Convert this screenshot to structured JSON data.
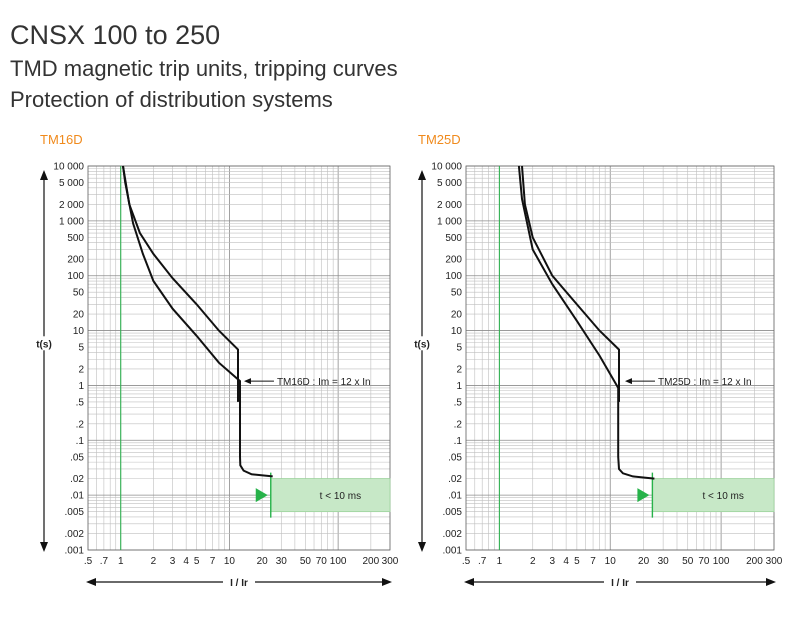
{
  "header": {
    "title": "CNSX 100 to 250",
    "subtitle_1": "TMD magnetic trip units, tripping curves",
    "subtitle_2": "Protection of distribution systems"
  },
  "colors": {
    "title_accent": "#f08a1c",
    "ir_line": "#27b24a",
    "zone_fill": "#c7e8c7",
    "zone_stroke": "#9bd39b",
    "zone_marker": "#27b24a",
    "curve": "#111111"
  },
  "chart_data": [
    {
      "type": "line",
      "title": "TM16D",
      "xlabel": "I / Ir",
      "ylabel": "t(s)",
      "x_scale": "log",
      "y_scale": "log",
      "xlim": [
        0.5,
        300
      ],
      "ylim": [
        0.001,
        10000
      ],
      "x_ticks": [
        {
          "v": 0.5,
          "label": ".5"
        },
        {
          "v": 0.7,
          "label": ".7"
        },
        {
          "v": 1,
          "label": "1"
        },
        {
          "v": 2,
          "label": "2"
        },
        {
          "v": 3,
          "label": "3"
        },
        {
          "v": 4,
          "label": "4"
        },
        {
          "v": 5,
          "label": "5"
        },
        {
          "v": 7,
          "label": "7"
        },
        {
          "v": 10,
          "label": "10"
        },
        {
          "v": 20,
          "label": "20"
        },
        {
          "v": 30,
          "label": "30"
        },
        {
          "v": 50,
          "label": "50"
        },
        {
          "v": 70,
          "label": "70"
        },
        {
          "v": 100,
          "label": "100"
        },
        {
          "v": 200,
          "label": "200"
        },
        {
          "v": 300,
          "label": "300"
        }
      ],
      "y_ticks": [
        {
          "v": 10000,
          "label": "10 000"
        },
        {
          "v": 5000,
          "label": "5 000"
        },
        {
          "v": 2000,
          "label": "2 000"
        },
        {
          "v": 1000,
          "label": "1 000"
        },
        {
          "v": 500,
          "label": "500"
        },
        {
          "v": 200,
          "label": "200"
        },
        {
          "v": 100,
          "label": "100"
        },
        {
          "v": 50,
          "label": "50"
        },
        {
          "v": 20,
          "label": "20"
        },
        {
          "v": 10,
          "label": "10"
        },
        {
          "v": 5,
          "label": "5"
        },
        {
          "v": 2,
          "label": "2"
        },
        {
          "v": 1,
          "label": "1"
        },
        {
          "v": 0.5,
          "label": ".5"
        },
        {
          "v": 0.2,
          "label": ".2"
        },
        {
          "v": 0.1,
          "label": ".1"
        },
        {
          "v": 0.05,
          "label": ".05"
        },
        {
          "v": 0.02,
          "label": ".02"
        },
        {
          "v": 0.01,
          "label": ".01"
        },
        {
          "v": 0.005,
          "label": ".005"
        },
        {
          "v": 0.002,
          "label": ".002"
        },
        {
          "v": 0.001,
          "label": ".001"
        }
      ],
      "series": [
        {
          "x": [
            1.05,
            1.2,
            1.5,
            2,
            3,
            5,
            8,
            12,
            12
          ],
          "y": [
            10000,
            2000,
            600,
            250,
            90,
            30,
            10,
            4.5,
            0.5
          ]
        },
        {
          "x": [
            1.05,
            1.1,
            1.3,
            1.6,
            2,
            3,
            5,
            8,
            12.5,
            12.5,
            12.6,
            13.5,
            16,
            25
          ],
          "y": [
            10000,
            5000,
            900,
            250,
            80,
            25,
            8,
            2.6,
            1.2,
            0.05,
            0.035,
            0.028,
            0.024,
            0.022
          ]
        }
      ],
      "ir_line_x": 1,
      "annotation": {
        "text": "TM16D : Im = 12 x In",
        "x": 12.5,
        "y": 1.2
      },
      "zone": {
        "text": "t < 10 ms",
        "x_start": 24,
        "x_end": 300,
        "y_top": 0.02,
        "y_bottom": 0.005
      }
    },
    {
      "type": "line",
      "title": "TM25D",
      "xlabel": "I / Ir",
      "ylabel": "t(s)",
      "x_scale": "log",
      "y_scale": "log",
      "xlim": [
        0.5,
        300
      ],
      "ylim": [
        0.001,
        10000
      ],
      "x_ticks": [
        {
          "v": 0.5,
          "label": ".5"
        },
        {
          "v": 0.7,
          "label": ".7"
        },
        {
          "v": 1,
          "label": "1"
        },
        {
          "v": 2,
          "label": "2"
        },
        {
          "v": 3,
          "label": "3"
        },
        {
          "v": 4,
          "label": "4"
        },
        {
          "v": 5,
          "label": "5"
        },
        {
          "v": 7,
          "label": "7"
        },
        {
          "v": 10,
          "label": "10"
        },
        {
          "v": 20,
          "label": "20"
        },
        {
          "v": 30,
          "label": "30"
        },
        {
          "v": 50,
          "label": "50"
        },
        {
          "v": 70,
          "label": "70"
        },
        {
          "v": 100,
          "label": "100"
        },
        {
          "v": 200,
          "label": "200"
        },
        {
          "v": 300,
          "label": "300"
        }
      ],
      "y_ticks": [
        {
          "v": 10000,
          "label": "10 000"
        },
        {
          "v": 5000,
          "label": "5 000"
        },
        {
          "v": 2000,
          "label": "2 000"
        },
        {
          "v": 1000,
          "label": "1 000"
        },
        {
          "v": 500,
          "label": "500"
        },
        {
          "v": 200,
          "label": "200"
        },
        {
          "v": 100,
          "label": "100"
        },
        {
          "v": 50,
          "label": "50"
        },
        {
          "v": 20,
          "label": "20"
        },
        {
          "v": 10,
          "label": "10"
        },
        {
          "v": 5,
          "label": "5"
        },
        {
          "v": 2,
          "label": "2"
        },
        {
          "v": 1,
          "label": "1"
        },
        {
          "v": 0.5,
          "label": ".5"
        },
        {
          "v": 0.2,
          "label": ".2"
        },
        {
          "v": 0.1,
          "label": ".1"
        },
        {
          "v": 0.05,
          "label": ".05"
        },
        {
          "v": 0.02,
          "label": ".02"
        },
        {
          "v": 0.01,
          "label": ".01"
        },
        {
          "v": 0.005,
          "label": ".005"
        },
        {
          "v": 0.002,
          "label": ".002"
        },
        {
          "v": 0.001,
          "label": ".001"
        }
      ],
      "series": [
        {
          "x": [
            1.6,
            1.7,
            2,
            3,
            5,
            8,
            12,
            12
          ],
          "y": [
            10000,
            2000,
            500,
            100,
            30,
            10,
            4.5,
            0.5
          ]
        },
        {
          "x": [
            1.5,
            1.6,
            2,
            3,
            5,
            8,
            11.8,
            11.8,
            12,
            13,
            16,
            25
          ],
          "y": [
            10000,
            2500,
            300,
            70,
            15,
            3.5,
            0.9,
            0.05,
            0.03,
            0.025,
            0.022,
            0.02
          ]
        }
      ],
      "ir_line_x": 1,
      "annotation": {
        "text": "TM25D : Im = 12 x In",
        "x": 12.5,
        "y": 1.2
      },
      "zone": {
        "text": "t < 10 ms",
        "x_start": 24,
        "x_end": 300,
        "y_top": 0.02,
        "y_bottom": 0.005
      }
    }
  ]
}
